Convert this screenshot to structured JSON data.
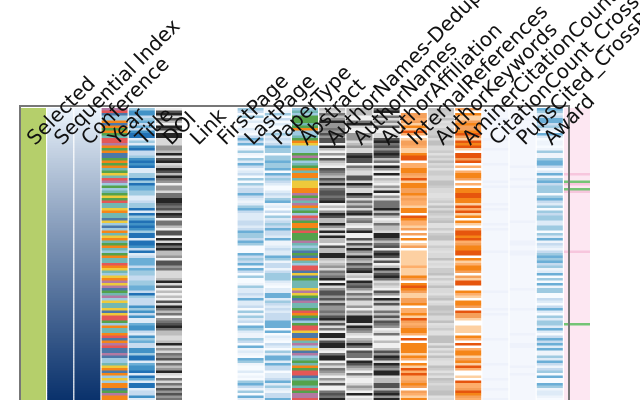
{
  "chart_data": {
    "type": "heatmap",
    "description_of_encoding": "",
    "columns": [
      {
        "label": "Selected",
        "palette": "green"
      },
      {
        "label": "Sequential Index",
        "palette": "blue-gradient"
      },
      {
        "label": "Conference",
        "palette": "blue-gradient"
      },
      {
        "label": "Year",
        "palette": "categorical"
      },
      {
        "label": "Title",
        "palette": "blue"
      },
      {
        "label": "DOI",
        "palette": "gray"
      },
      {
        "label": "Link",
        "palette": "white"
      },
      {
        "label": "FirstPage",
        "palette": "white"
      },
      {
        "label": "LastPage",
        "palette": "light-blue"
      },
      {
        "label": "PaperType",
        "palette": "light-blue"
      },
      {
        "label": "Abstract",
        "palette": "categorical"
      },
      {
        "label": "AuthorNames-Deduped",
        "palette": "gray"
      },
      {
        "label": "AuthorNames",
        "palette": "gray"
      },
      {
        "label": "AuthorAffiliation",
        "palette": "gray"
      },
      {
        "label": "InternalReferences",
        "palette": "orange"
      },
      {
        "label": "AuthorKeywords",
        "palette": "light-gray"
      },
      {
        "label": "AminerCitationCount",
        "palette": "orange"
      },
      {
        "label": "CitationCount_CrossRef",
        "palette": "faint"
      },
      {
        "label": "PubsCited_CrossRef",
        "palette": "faint"
      },
      {
        "label": "Award",
        "palette": "light-blue"
      },
      {
        "label": "",
        "palette": "pink"
      }
    ],
    "colors": {
      "green": "#b5cf6b",
      "orange": "#f58518",
      "blue_dark": "#08306b",
      "blue": "#4c8ed0",
      "gray_dark": "#333333",
      "light_blue": "#c6dbef",
      "pink": "#fde7f2"
    }
  }
}
